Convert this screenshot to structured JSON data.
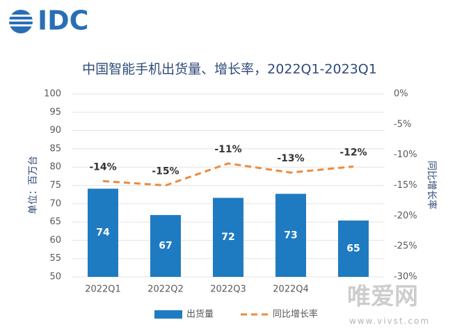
{
  "logo": "IDC",
  "watermark": {
    "name": "唯爱网",
    "url": "www.vivst.com"
  },
  "chart_data": {
    "type": "bar",
    "title": "中国智能手机出货量、增长率，2022Q1-2023Q1",
    "y_label": "单位：百万台",
    "y2_label": "同比增长率",
    "categories": [
      "2022Q1",
      "2022Q2",
      "2022Q3",
      "2022Q4",
      null
    ],
    "ylim": [
      50,
      100
    ],
    "yticks": [
      50,
      55,
      60,
      65,
      70,
      75,
      80,
      85,
      90,
      95,
      100
    ],
    "y2lim": [
      -30,
      0
    ],
    "y2ticks": [
      {
        "value": 0,
        "label": "0%"
      },
      {
        "value": -5,
        "label": "-5%"
      },
      {
        "value": -10,
        "label": "-10%"
      },
      {
        "value": -15,
        "label": "-15%"
      },
      {
        "value": -20,
        "label": "-20%"
      },
      {
        "value": -25,
        "label": "-25%"
      },
      {
        "value": -30,
        "label": "-30%"
      }
    ],
    "grid": true,
    "series": [
      {
        "name": "出货量",
        "type": "bar",
        "color": "#1f7bc1",
        "values": [
          74.1,
          66.9,
          71.6,
          72.7,
          65.4
        ],
        "value_labels": [
          "74",
          "67",
          "72",
          "73",
          "65"
        ]
      },
      {
        "name": "同比增长率",
        "type": "line",
        "axis": "y2",
        "color": "#ee8a3c",
        "values": [
          -14.3,
          -15.0,
          -11.4,
          -12.9,
          -11.9
        ],
        "value_labels": [
          "-14%",
          "-15%",
          "-11%",
          "-13%",
          "-12%"
        ]
      }
    ]
  }
}
